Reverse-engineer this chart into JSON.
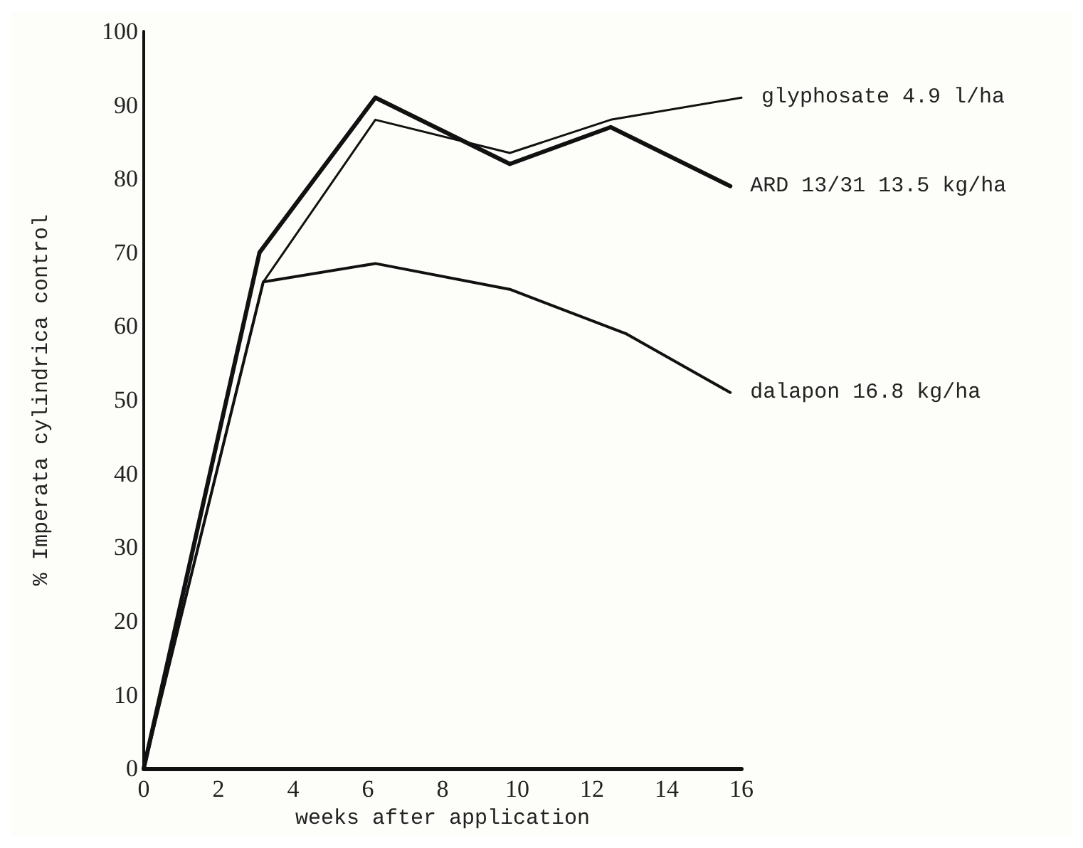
{
  "chart_data": {
    "type": "line",
    "xlabel": "weeks after application",
    "ylabel": "% Imperata cylindrica control",
    "xlim": [
      0,
      16
    ],
    "ylim": [
      0,
      100
    ],
    "xticks": [
      0,
      2,
      4,
      6,
      8,
      10,
      12,
      14,
      16
    ],
    "yticks": [
      0,
      10,
      20,
      30,
      40,
      50,
      60,
      70,
      80,
      90,
      100
    ],
    "grid": false,
    "legend": false,
    "marker": "none",
    "line_style": "solid",
    "series": [
      {
        "name": "glyphosate 4.9 l/ha",
        "color": "#111111",
        "x": [
          0,
          3.2,
          6.2,
          9.8,
          12.5,
          16
        ],
        "values": [
          0,
          66,
          88,
          83.5,
          88,
          91
        ]
      },
      {
        "name": "ARD 13/31 13.5 kg/ha",
        "color": "#111111",
        "x": [
          0,
          3.1,
          6.2,
          9.8,
          12.5,
          15.7
        ],
        "values": [
          0,
          70,
          91,
          82,
          87,
          79
        ]
      },
      {
        "name": "dalapon 16.8 kg/ha",
        "color": "#111111",
        "x": [
          0,
          3.2,
          6.2,
          9.8,
          12.9,
          15.7
        ],
        "values": [
          0,
          66,
          68.5,
          65,
          59,
          51
        ]
      }
    ]
  }
}
